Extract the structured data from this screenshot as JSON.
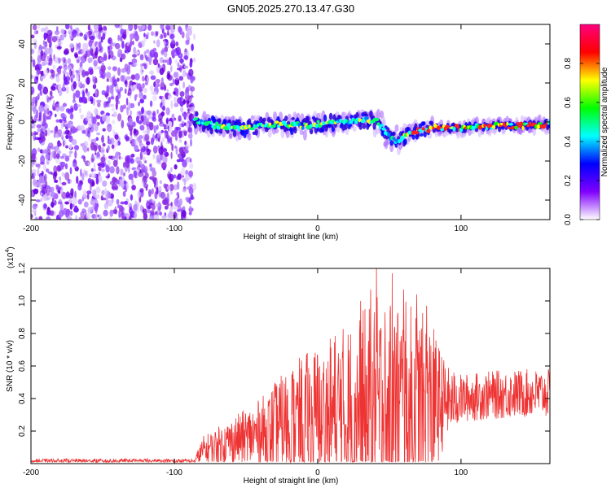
{
  "title": "GN05.2025.270.13.47.G30",
  "chart_data": [
    {
      "type": "heatmap",
      "name": "spectrogram",
      "xlabel": "Height of straight line (km)",
      "ylabel": "Frequency (Hz)",
      "xlim": [
        -200,
        162
      ],
      "ylim": [
        -50,
        50
      ],
      "x_ticks": [
        -200,
        -100,
        0,
        100
      ],
      "x_tick_labels": [
        "-200",
        "-100",
        "0",
        "100"
      ],
      "y_ticks": [
        -40,
        -20,
        0,
        20,
        40
      ],
      "y_tick_labels": [
        "-40",
        "-20",
        "0",
        "20",
        "40"
      ],
      "noise_region": {
        "x_start": -200,
        "x_end": -86
      },
      "signal_trace": {
        "x": [
          -86,
          -70,
          -50,
          -30,
          -10,
          0,
          20,
          35,
          42,
          50,
          55,
          65,
          80,
          100,
          120,
          140,
          162
        ],
        "freq": [
          1,
          -2,
          -3,
          -1,
          -2,
          -1,
          0,
          1,
          0,
          -8,
          -10,
          -5,
          -3,
          -3,
          -2,
          -2,
          -1
        ]
      },
      "colorbar": {
        "label": "Normalized spectral amplitude",
        "range": [
          0,
          1
        ],
        "ticks": [
          0.0,
          0.2,
          0.4,
          0.6,
          0.8
        ],
        "tick_labels": [
          "0.0",
          "0.2",
          "0.4",
          "0.6",
          "0.8"
        ],
        "colors": [
          "#ffffff",
          "#8000ff",
          "#0000ff",
          "#00ffff",
          "#00ff00",
          "#ffff00",
          "#ff0000",
          "#ff0080"
        ]
      }
    },
    {
      "type": "line",
      "name": "snr",
      "xlabel": "Height of straight line (km)",
      "ylabel": "SNR (10 * v/v)",
      "y_scale_label": "(x10",
      "y_scale_exp": "4",
      "y_scale_close": ")",
      "xlim": [
        -200,
        162
      ],
      "ylim": [
        0,
        12000
      ],
      "x_ticks": [
        -200,
        -100,
        0,
        100
      ],
      "x_tick_labels": [
        "-200",
        "-100",
        "0",
        "100"
      ],
      "y_ticks": [
        2000,
        4000,
        6000,
        8000,
        10000,
        12000
      ],
      "y_tick_labels": [
        "0.2",
        "0.4",
        "0.6",
        "0.8",
        "1.0",
        "1.2"
      ],
      "color": "#ee3333",
      "envelope": {
        "x": [
          -200,
          -86,
          -80,
          -60,
          -40,
          -20,
          -10,
          0,
          10,
          20,
          30,
          40,
          50,
          60,
          70,
          80,
          90,
          100,
          120,
          140,
          162
        ],
        "base": [
          150,
          150,
          800,
          1400,
          1800,
          2500,
          2700,
          2900,
          3000,
          3000,
          3100,
          3200,
          3300,
          3300,
          3400,
          3600,
          3800,
          4000,
          4200,
          4300,
          4300
        ],
        "amp": [
          150,
          150,
          900,
          1400,
          2200,
          3500,
          4000,
          4500,
          5200,
          5600,
          6200,
          7200,
          6800,
          6800,
          6200,
          5000,
          2200,
          1500,
          1500,
          1500,
          1500
        ]
      },
      "peaks": [
        {
          "x": 30,
          "y": 10000
        },
        {
          "x": 37,
          "y": 10700
        },
        {
          "x": 41,
          "y": 12000
        },
        {
          "x": 52,
          "y": 11700
        },
        {
          "x": 60,
          "y": 10700
        },
        {
          "x": 69,
          "y": 10400
        },
        {
          "x": 76,
          "y": 9700
        }
      ]
    }
  ]
}
